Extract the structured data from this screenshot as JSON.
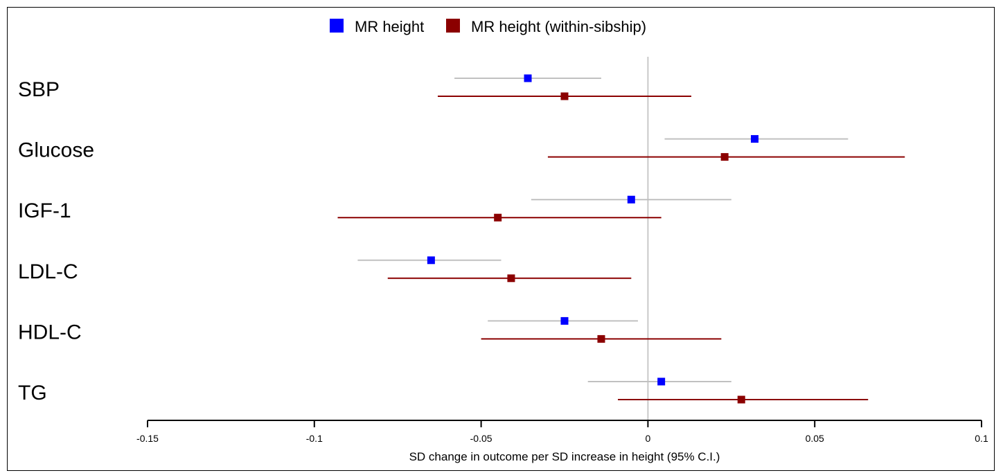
{
  "chart_data": {
    "type": "scatter",
    "subtype": "forest-plot",
    "xlabel": "SD change in outcome per SD increase in height (95% C.I.)",
    "xlim": [
      -0.15,
      0.1
    ],
    "xticks": [
      "-0.15",
      "-0.1",
      "-0.05",
      "0",
      "0.05",
      "0.1"
    ],
    "reference_line": 0,
    "legend_position": "top",
    "categories": [
      "SBP",
      "Glucose",
      "IGF-1",
      "LDL-C",
      "HDL-C",
      "TG"
    ],
    "series": [
      {
        "name": "MR height",
        "color": "#0000ff",
        "ci_color": "#c0c0c0",
        "estimates": [
          -0.036,
          0.032,
          -0.005,
          -0.065,
          -0.025,
          0.004
        ],
        "lower": [
          -0.058,
          0.005,
          -0.035,
          -0.087,
          -0.048,
          -0.018
        ],
        "upper": [
          -0.014,
          0.06,
          0.025,
          -0.044,
          -0.003,
          0.025
        ]
      },
      {
        "name": "MR height (within-sibship)",
        "color": "#8b0000",
        "ci_color": "#8b0000",
        "estimates": [
          -0.025,
          0.023,
          -0.045,
          -0.041,
          -0.014,
          0.028
        ],
        "lower": [
          -0.063,
          -0.03,
          -0.093,
          -0.078,
          -0.05,
          -0.009
        ],
        "upper": [
          0.013,
          0.077,
          0.004,
          -0.005,
          0.022,
          0.066
        ]
      }
    ]
  }
}
